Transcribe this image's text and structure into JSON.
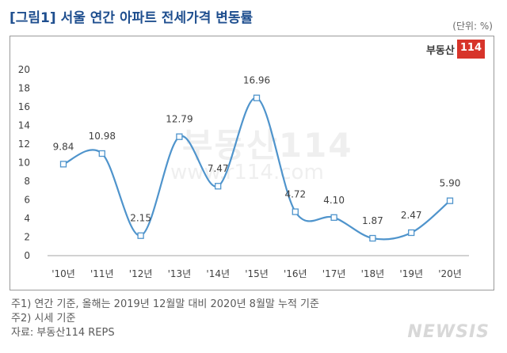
{
  "title": "[그림1] 서울 연간 아파트 전세가격 변동률",
  "unit": "(단위: %)",
  "logo": {
    "text": "부동산",
    "num": "114"
  },
  "watermark": {
    "text1": "부동산114",
    "text2": "www.r114.com"
  },
  "notes": [
    "주1) 연간 기준, 올해는 2019년 12월말 대비 2020년 8월말 누적 기준",
    "주2) 시세 기준",
    "자료: 부동산114 REPS"
  ],
  "newsis": "NEWSIS",
  "colors": {
    "line": "#4f94cc",
    "title": "#1f4f8f",
    "axis": "#a6a6a6"
  },
  "chart_data": {
    "type": "line",
    "title": "[그림1] 서울 연간 아파트 전세가격 변동률",
    "categories": [
      "'10년",
      "'11년",
      "'12년",
      "'13년",
      "'14년",
      "'15년",
      "'16년",
      "'17년",
      "'18년",
      "'19년",
      "'20년"
    ],
    "values": [
      9.84,
      10.98,
      2.15,
      12.79,
      7.47,
      16.96,
      4.72,
      4.1,
      1.87,
      2.47,
      5.9
    ],
    "data_labels": [
      "9.84",
      "10.98",
      "2.15",
      "12.79",
      "7.47",
      "16.96",
      "4.72",
      "4.10",
      "1.87",
      "2.47",
      "5.90"
    ],
    "ylim": [
      0,
      20
    ],
    "yticks": [
      0,
      2,
      4,
      6,
      8,
      10,
      12,
      14,
      16,
      18,
      20
    ],
    "grid": false,
    "smooth": true,
    "marker": "square"
  }
}
